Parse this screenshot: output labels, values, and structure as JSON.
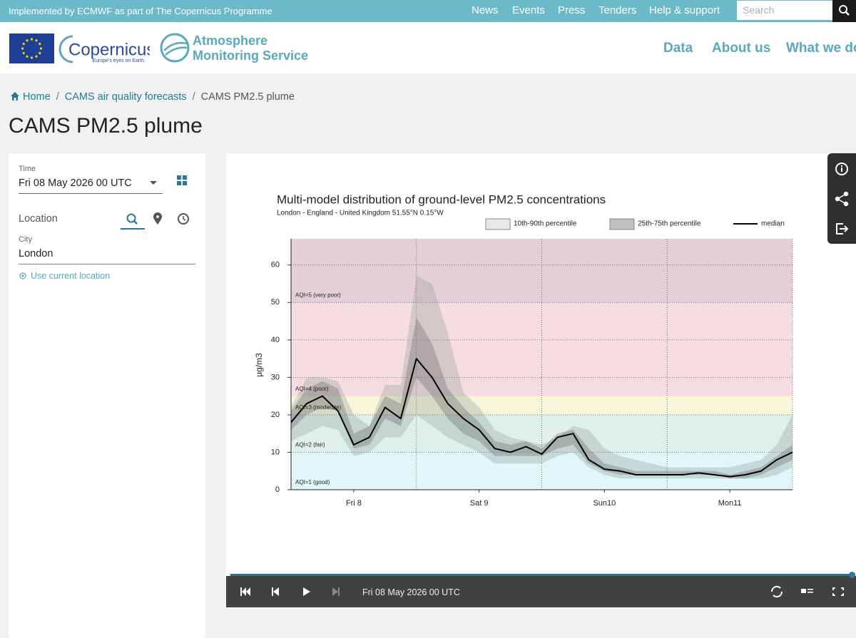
{
  "topbar": {
    "text": "Implemented by ECMWF as part of The Copernicus Programme",
    "nav": [
      "News",
      "Events",
      "Press",
      "Tenders",
      "Help & support"
    ],
    "search_placeholder": "Search"
  },
  "header": {
    "logo_main": "Copernicus",
    "logo_tagline": "Europe's eyes on Earth",
    "service": [
      "Atmosphere",
      "Monitoring Service"
    ],
    "nav": [
      "Data",
      "About us",
      "What we do"
    ]
  },
  "breadcrumb": [
    "Home",
    "CAMS air quality forecasts",
    "CAMS PM2.5 plume"
  ],
  "page_title": "CAMS PM2.5 plume",
  "sidebar": {
    "time_label": "Time",
    "time_value": "Fri 08 May 2026 00 UTC",
    "location_label": "Location",
    "city_label": "City",
    "city_value": "London",
    "use_location": "Use current location"
  },
  "player": {
    "time": "Fri 08 May 2026 00 UTC"
  },
  "chart_data": {
    "type": "band-line",
    "title": "Multi-model distribution of ground-level PM2.5 concentrations",
    "subtitle": "London - England - United Kingdom 51.55°N 0.15°W",
    "y_label": "µg/m3",
    "legend": "top-right",
    "x": [
      0,
      3,
      6,
      9,
      12,
      15,
      18,
      21,
      24,
      27,
      30,
      33,
      36,
      39,
      42,
      45,
      48,
      51,
      54,
      57,
      60,
      63,
      66,
      69,
      72,
      75,
      78,
      81,
      84,
      87,
      90,
      93,
      96
    ],
    "xlim": [
      0,
      96
    ],
    "xticks": [
      {
        "value": 12,
        "label": "Fri 8"
      },
      {
        "value": 36,
        "label": "Sat 9"
      },
      {
        "value": 60,
        "label": "Sun10"
      },
      {
        "value": 84,
        "label": "Mon11"
      }
    ],
    "xgrid": [
      24,
      48,
      72,
      96
    ],
    "ylim": [
      0,
      67
    ],
    "yticks": [
      0,
      10,
      20,
      30,
      40,
      50,
      60
    ],
    "grid": true,
    "bands": [
      {
        "label": "AQI=1 (good)",
        "from": 0,
        "color": "#e0f6f8"
      },
      {
        "label": "AQI=2 (fair)",
        "from": 10,
        "color": "#dff0ec"
      },
      {
        "label": "AQI=3 (moderate)",
        "from": 20,
        "color": "#f8f6da"
      },
      {
        "label": "AQI=4 (poor)",
        "from": 25,
        "color": "#f7dde1"
      },
      {
        "label": "AQI=5 (very poor)",
        "from": 50,
        "color": "#e4cfd8"
      }
    ],
    "series": [
      {
        "name": "10th-90th percentile",
        "color": "#8f9a98",
        "lower": [
          13,
          15,
          17,
          16,
          9,
          10,
          14,
          14,
          20,
          17,
          14,
          12,
          10,
          7,
          7,
          7,
          7,
          9,
          10,
          6,
          4,
          3,
          3,
          3,
          3,
          3,
          3,
          3,
          3,
          3,
          3,
          4,
          6
        ],
        "upper": [
          22,
          30,
          30,
          29,
          20,
          17,
          28,
          28,
          57,
          55,
          42,
          26,
          22,
          16,
          14,
          13,
          12,
          14,
          17,
          16,
          11,
          9,
          8,
          7,
          6,
          6,
          6,
          6,
          6,
          7,
          8,
          12,
          20
        ]
      },
      {
        "name": "25th-75th percentile",
        "color": "#5f6563",
        "lower": [
          16,
          20,
          22,
          21,
          11,
          12,
          19,
          17,
          30,
          25,
          19,
          15,
          13,
          9,
          9,
          9,
          9,
          11,
          12,
          7,
          5,
          4,
          4,
          4,
          4,
          4,
          4,
          4,
          3,
          3,
          4,
          6,
          8
        ],
        "upper": [
          21,
          27,
          29,
          27,
          15,
          17,
          25,
          23,
          46,
          39,
          27,
          22,
          18,
          13,
          12,
          13,
          11,
          15,
          16,
          11,
          7,
          6,
          5,
          5,
          5,
          5,
          5,
          5,
          4,
          5,
          6,
          9,
          12
        ]
      },
      {
        "name": "median",
        "color": "#000000",
        "values": [
          18,
          23,
          25,
          21,
          12,
          14,
          22,
          19,
          35,
          30,
          23,
          19,
          16,
          11,
          10,
          11.5,
          9.5,
          14,
          15,
          8,
          5.5,
          5,
          4,
          4,
          4,
          4,
          4.5,
          4,
          3.5,
          4,
          5,
          8,
          10
        ]
      }
    ]
  }
}
